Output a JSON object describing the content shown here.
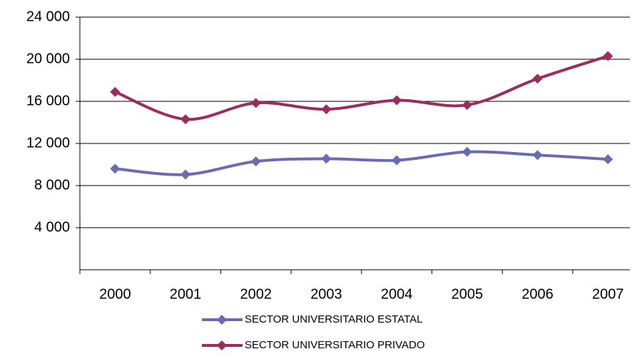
{
  "chart_data": {
    "type": "line",
    "categories": [
      "2000",
      "2001",
      "2002",
      "2003",
      "2004",
      "2005",
      "2006",
      "2007"
    ],
    "series": [
      {
        "name": "SECTOR UNIVERSITARIO ESTATAL",
        "color": "#6b6bb0",
        "values": [
          9600,
          9050,
          10300,
          10550,
          10400,
          11200,
          10900,
          10500
        ]
      },
      {
        "name": "SECTOR UNIVERSITARIO PRIVADO",
        "color": "#9b2d5e",
        "values": [
          16900,
          14300,
          15850,
          15250,
          16100,
          15650,
          18150,
          20300
        ]
      }
    ],
    "ylim": [
      0,
      24000
    ],
    "yticks": [
      {
        "value": 4000,
        "label": "4 000"
      },
      {
        "value": 8000,
        "label": "8 000"
      },
      {
        "value": 12000,
        "label": "12 000"
      },
      {
        "value": 16000,
        "label": "16 000"
      },
      {
        "value": 20000,
        "label": "20 000"
      },
      {
        "value": 24000,
        "label": "24 000"
      }
    ],
    "grid": true,
    "legend": "bottom"
  }
}
